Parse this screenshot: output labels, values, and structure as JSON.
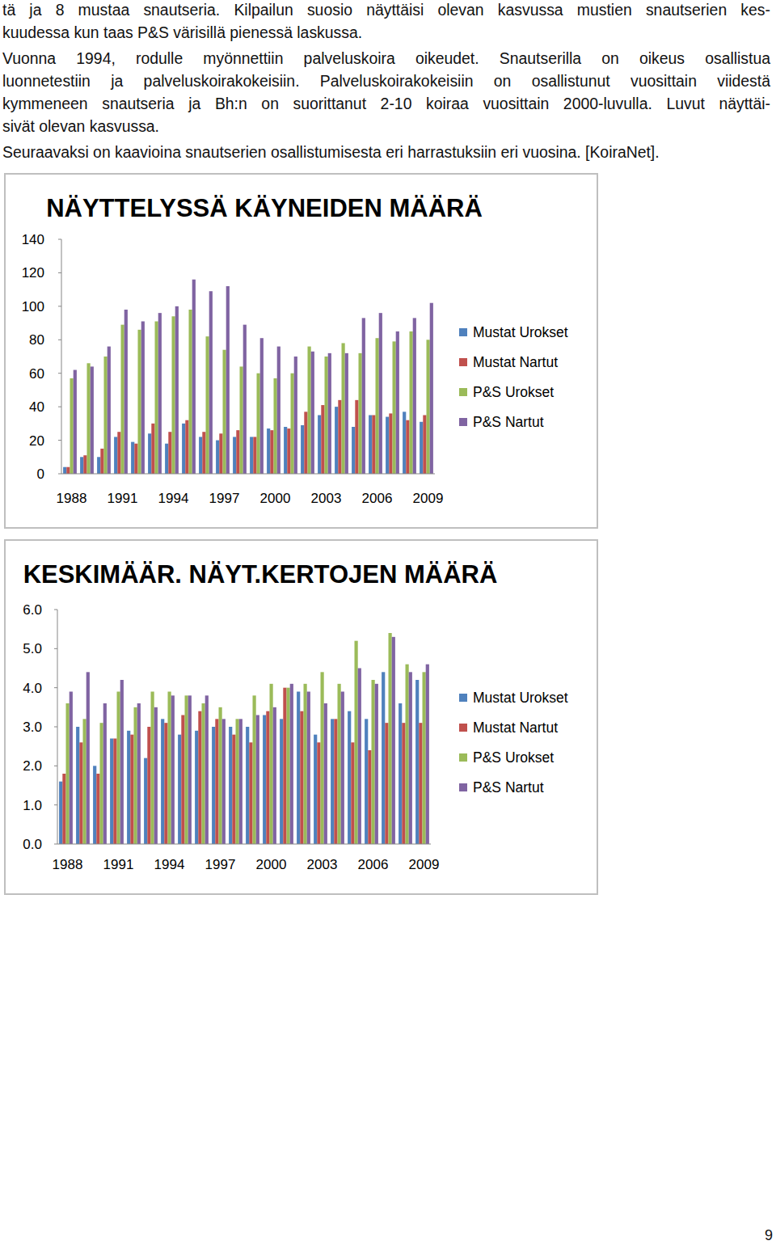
{
  "page": {
    "paragraphs": [
      {
        "lines": [
          "tä ja 8 mustaa snautseria. Kilpailun suosio näyttäisi olevan kasvussa mustien snautserien kes-",
          "kuudessa kun taas P&S värisillä pienessä laskussa."
        ]
      },
      {
        "lines": [
          "Vuonna 1994, rodulle myönnettiin palveluskoira oikeudet. Snautserilla on oikeus osallistua",
          "luonnetestiin ja palveluskoirakokeisiin. Palveluskoirakokeisiin on osallistunut vuosittain viidestä",
          "kymmeneen snautseria ja Bh:n on suorittanut 2-10 koiraa vuosittain 2000-luvulla. Luvut näyttäi-",
          "sivät olevan kasvussa."
        ]
      },
      {
        "lines": [
          "Seuraavaksi on kaavioina snautserien osallistumisesta eri harrastuksiin eri vuosina. [KoiraNet]."
        ]
      }
    ],
    "page_number": "9"
  },
  "chart_data": [
    {
      "type": "bar",
      "title": "NÄYTTELYSSÄ KÄYNEIDEN MÄÄRÄ",
      "categories": [
        "1988",
        null,
        null,
        "1991",
        null,
        null,
        "1994",
        null,
        null,
        "1997",
        null,
        null,
        "2000",
        null,
        null,
        "2003",
        null,
        null,
        "2006",
        null,
        null,
        "2009"
      ],
      "series": [
        {
          "name": "Mustat Urokset",
          "color": "#4f81bd",
          "values": [
            4,
            10,
            10,
            22,
            19,
            24,
            18,
            30,
            22,
            20,
            22,
            22,
            27,
            28,
            29,
            35,
            40,
            28,
            35,
            34,
            37,
            31
          ]
        },
        {
          "name": "Mustat Nartut",
          "color": "#c0504d",
          "values": [
            4,
            11,
            15,
            25,
            18,
            30,
            25,
            32,
            25,
            24,
            26,
            22,
            26,
            27,
            37,
            41,
            44,
            44,
            35,
            36,
            32,
            35
          ]
        },
        {
          "name": "P&S Urokset",
          "color": "#9bbb59",
          "values": [
            57,
            66,
            70,
            89,
            86,
            91,
            94,
            98,
            82,
            74,
            64,
            60,
            57,
            60,
            76,
            70,
            78,
            72,
            81,
            79,
            85,
            80
          ]
        },
        {
          "name": "P&S Nartut",
          "color": "#8064a2",
          "values": [
            62,
            64,
            76,
            98,
            91,
            96,
            100,
            116,
            109,
            112,
            89,
            81,
            76,
            70,
            73,
            72,
            72,
            93,
            96,
            85,
            93,
            102
          ]
        }
      ],
      "ylim": [
        0,
        140
      ],
      "yticks": [
        0,
        20,
        40,
        60,
        80,
        100,
        120,
        140
      ],
      "grid": false,
      "legend": "right"
    },
    {
      "type": "bar",
      "title": "KESKIMÄÄR. NÄYT.KERTOJEN MÄÄRÄ",
      "categories": [
        "1988",
        null,
        null,
        "1991",
        null,
        null,
        "1994",
        null,
        null,
        "1997",
        null,
        null,
        "2000",
        null,
        null,
        "2003",
        null,
        null,
        "2006",
        null,
        null,
        "2009"
      ],
      "series": [
        {
          "name": "Mustat Urokset",
          "color": "#4f81bd",
          "values": [
            1.6,
            3.0,
            2.0,
            2.7,
            2.9,
            2.2,
            3.2,
            2.8,
            2.9,
            3.0,
            3.0,
            3.0,
            3.3,
            3.2,
            3.9,
            2.8,
            3.2,
            3.4,
            3.2,
            4.4,
            3.6,
            4.2
          ]
        },
        {
          "name": "Mustat Nartut",
          "color": "#c0504d",
          "values": [
            1.8,
            2.6,
            1.8,
            2.7,
            2.8,
            3.0,
            3.1,
            3.3,
            3.4,
            3.2,
            2.8,
            2.6,
            3.4,
            4.0,
            3.4,
            2.6,
            3.2,
            2.6,
            2.4,
            3.1,
            3.1,
            3.1
          ]
        },
        {
          "name": "P&S Urokset",
          "color": "#9bbb59",
          "values": [
            3.6,
            3.2,
            3.1,
            3.9,
            3.5,
            3.9,
            3.9,
            3.8,
            3.6,
            3.5,
            3.2,
            3.8,
            4.1,
            4.0,
            4.1,
            4.4,
            4.1,
            5.2,
            4.2,
            5.4,
            4.6,
            4.4
          ]
        },
        {
          "name": "P&S Nartut",
          "color": "#8064a2",
          "values": [
            3.9,
            4.4,
            3.6,
            4.2,
            3.6,
            3.5,
            3.8,
            3.8,
            3.8,
            3.2,
            3.2,
            3.3,
            3.5,
            4.1,
            3.9,
            3.6,
            3.9,
            4.5,
            4.1,
            5.3,
            4.4,
            4.6
          ]
        }
      ],
      "ylim": [
        0,
        6
      ],
      "yticks": [
        {
          "value": 0,
          "label": "0.0"
        },
        {
          "value": 1,
          "label": "1.0"
        },
        {
          "value": 2,
          "label": "2.0"
        },
        {
          "value": 3,
          "label": "3.0"
        },
        {
          "value": 4,
          "label": "4.0"
        },
        {
          "value": 5,
          "label": "5.0"
        },
        {
          "value": 6,
          "label": "6.0"
        }
      ],
      "grid": false,
      "legend": "right"
    }
  ]
}
